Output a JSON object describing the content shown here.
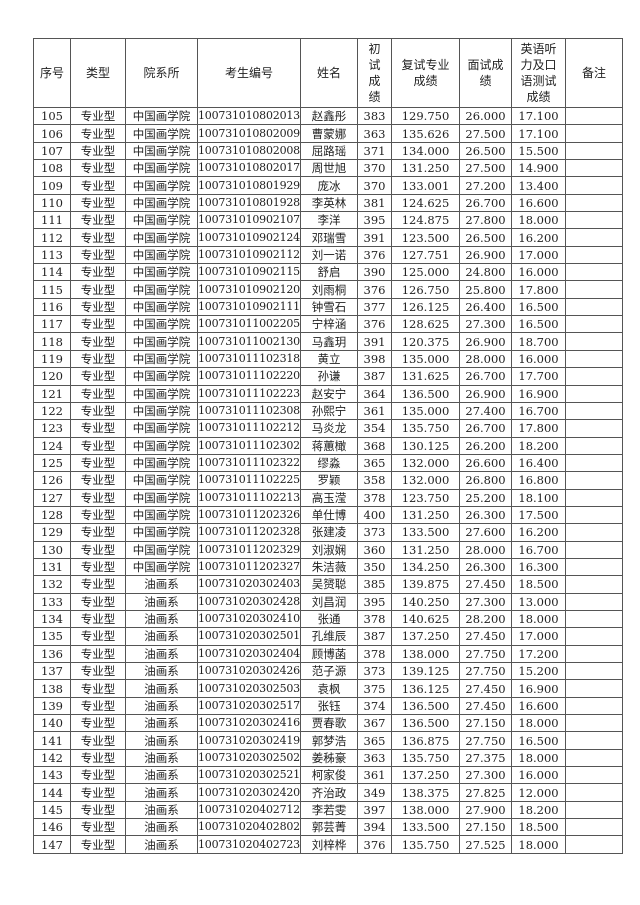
{
  "headers": [
    "序号",
    "类型",
    "院系所",
    "考生编号",
    "姓名",
    "初\n试\n成\n绩",
    "复试专业\n成绩",
    "面试成\n绩",
    "英语听\n力及口\n语测试\n成绩",
    "备注"
  ],
  "rows": [
    [
      "105",
      "专业型",
      "中国画学院",
      "100731010802013",
      "赵鑫彤",
      "383",
      "129.750",
      "26.000",
      "17.100",
      ""
    ],
    [
      "106",
      "专业型",
      "中国画学院",
      "100731010802009",
      "曹蒙娜",
      "363",
      "135.626",
      "27.500",
      "17.100",
      ""
    ],
    [
      "107",
      "专业型",
      "中国画学院",
      "100731010802008",
      "屈路瑶",
      "371",
      "134.000",
      "26.500",
      "15.500",
      ""
    ],
    [
      "108",
      "专业型",
      "中国画学院",
      "100731010802017",
      "周世旭",
      "370",
      "131.250",
      "27.500",
      "14.900",
      ""
    ],
    [
      "109",
      "专业型",
      "中国画学院",
      "100731010801929",
      "庞冰",
      "370",
      "133.001",
      "27.200",
      "13.400",
      ""
    ],
    [
      "110",
      "专业型",
      "中国画学院",
      "100731010801928",
      "李英林",
      "381",
      "124.625",
      "26.700",
      "16.600",
      ""
    ],
    [
      "111",
      "专业型",
      "中国画学院",
      "100731010902107",
      "李洋",
      "395",
      "124.875",
      "27.800",
      "18.000",
      ""
    ],
    [
      "112",
      "专业型",
      "中国画学院",
      "100731010902124",
      "邓瑞雪",
      "391",
      "123.500",
      "26.500",
      "16.200",
      ""
    ],
    [
      "113",
      "专业型",
      "中国画学院",
      "100731010902112",
      "刘一诺",
      "376",
      "127.751",
      "26.900",
      "17.000",
      ""
    ],
    [
      "114",
      "专业型",
      "中国画学院",
      "100731010902115",
      "舒启",
      "390",
      "125.000",
      "24.800",
      "16.000",
      ""
    ],
    [
      "115",
      "专业型",
      "中国画学院",
      "100731010902120",
      "刘雨桐",
      "376",
      "126.750",
      "25.800",
      "17.800",
      ""
    ],
    [
      "116",
      "专业型",
      "中国画学院",
      "100731010902111",
      "钟雪石",
      "377",
      "126.125",
      "26.400",
      "16.500",
      ""
    ],
    [
      "117",
      "专业型",
      "中国画学院",
      "100731011002205",
      "宁梓涵",
      "376",
      "128.625",
      "27.300",
      "16.500",
      ""
    ],
    [
      "118",
      "专业型",
      "中国画学院",
      "100731011002130",
      "马鑫玥",
      "391",
      "120.375",
      "26.900",
      "18.700",
      ""
    ],
    [
      "119",
      "专业型",
      "中国画学院",
      "100731011102318",
      "黄立",
      "398",
      "135.000",
      "28.000",
      "16.000",
      ""
    ],
    [
      "120",
      "专业型",
      "中国画学院",
      "100731011102220",
      "孙谦",
      "387",
      "131.625",
      "26.700",
      "17.700",
      ""
    ],
    [
      "121",
      "专业型",
      "中国画学院",
      "100731011102223",
      "赵安宁",
      "364",
      "136.500",
      "26.900",
      "16.900",
      ""
    ],
    [
      "122",
      "专业型",
      "中国画学院",
      "100731011102308",
      "孙熙宁",
      "361",
      "135.000",
      "27.400",
      "16.700",
      ""
    ],
    [
      "123",
      "专业型",
      "中国画学院",
      "100731011102212",
      "马炎龙",
      "354",
      "135.750",
      "26.700",
      "17.800",
      ""
    ],
    [
      "124",
      "专业型",
      "中国画学院",
      "100731011102302",
      "蒋蕙橄",
      "368",
      "130.125",
      "26.200",
      "18.200",
      ""
    ],
    [
      "125",
      "专业型",
      "中国画学院",
      "100731011102322",
      "缪淼",
      "365",
      "132.000",
      "26.600",
      "16.400",
      ""
    ],
    [
      "126",
      "专业型",
      "中国画学院",
      "100731011102225",
      "罗颖",
      "358",
      "132.000",
      "26.800",
      "16.800",
      ""
    ],
    [
      "127",
      "专业型",
      "中国画学院",
      "100731011102213",
      "高玉滢",
      "378",
      "123.750",
      "25.200",
      "18.100",
      ""
    ],
    [
      "128",
      "专业型",
      "中国画学院",
      "100731011202326",
      "单仕博",
      "400",
      "131.250",
      "26.300",
      "17.500",
      ""
    ],
    [
      "129",
      "专业型",
      "中国画学院",
      "100731011202328",
      "张建凌",
      "373",
      "133.500",
      "27.600",
      "16.200",
      ""
    ],
    [
      "130",
      "专业型",
      "中国画学院",
      "100731011202329",
      "刘淑娴",
      "360",
      "131.250",
      "28.000",
      "16.700",
      ""
    ],
    [
      "131",
      "专业型",
      "中国画学院",
      "100731011202327",
      "朱洁薇",
      "350",
      "134.250",
      "26.300",
      "16.300",
      ""
    ],
    [
      "132",
      "专业型",
      "油画系",
      "100731020302403",
      "吴赟聪",
      "385",
      "139.875",
      "27.450",
      "18.500",
      ""
    ],
    [
      "133",
      "专业型",
      "油画系",
      "100731020302428",
      "刘昌润",
      "395",
      "140.250",
      "27.300",
      "13.000",
      ""
    ],
    [
      "134",
      "专业型",
      "油画系",
      "100731020302410",
      "张通",
      "378",
      "140.625",
      "28.200",
      "18.000",
      ""
    ],
    [
      "135",
      "专业型",
      "油画系",
      "100731020302501",
      "孔维辰",
      "387",
      "137.250",
      "27.450",
      "17.000",
      ""
    ],
    [
      "136",
      "专业型",
      "油画系",
      "100731020302404",
      "顾博菡",
      "378",
      "138.000",
      "27.750",
      "17.200",
      ""
    ],
    [
      "137",
      "专业型",
      "油画系",
      "100731020302426",
      "范子源",
      "373",
      "139.125",
      "27.750",
      "15.200",
      ""
    ],
    [
      "138",
      "专业型",
      "油画系",
      "100731020302503",
      "袁枫",
      "375",
      "136.125",
      "27.450",
      "16.900",
      ""
    ],
    [
      "139",
      "专业型",
      "油画系",
      "100731020302517",
      "张钰",
      "374",
      "136.500",
      "27.450",
      "16.600",
      ""
    ],
    [
      "140",
      "专业型",
      "油画系",
      "100731020302416",
      "贾春歌",
      "367",
      "136.500",
      "27.150",
      "18.000",
      ""
    ],
    [
      "141",
      "专业型",
      "油画系",
      "100731020302419",
      "郭梦浩",
      "365",
      "136.875",
      "27.750",
      "16.500",
      ""
    ],
    [
      "142",
      "专业型",
      "油画系",
      "100731020302502",
      "姜秭豪",
      "363",
      "135.750",
      "27.375",
      "18.000",
      ""
    ],
    [
      "143",
      "专业型",
      "油画系",
      "100731020302521",
      "柯家俊",
      "361",
      "137.250",
      "27.300",
      "16.000",
      ""
    ],
    [
      "144",
      "专业型",
      "油画系",
      "100731020302420",
      "齐治政",
      "349",
      "138.375",
      "27.825",
      "12.000",
      ""
    ],
    [
      "145",
      "专业型",
      "油画系",
      "100731020402712",
      "李若雯",
      "397",
      "138.000",
      "27.900",
      "18.200",
      ""
    ],
    [
      "146",
      "专业型",
      "油画系",
      "100731020402802",
      "郭芸菁",
      "394",
      "133.500",
      "27.150",
      "18.500",
      ""
    ],
    [
      "147",
      "专业型",
      "油画系",
      "100731020402723",
      "刘梓桦",
      "376",
      "135.750",
      "27.525",
      "18.000",
      ""
    ]
  ]
}
